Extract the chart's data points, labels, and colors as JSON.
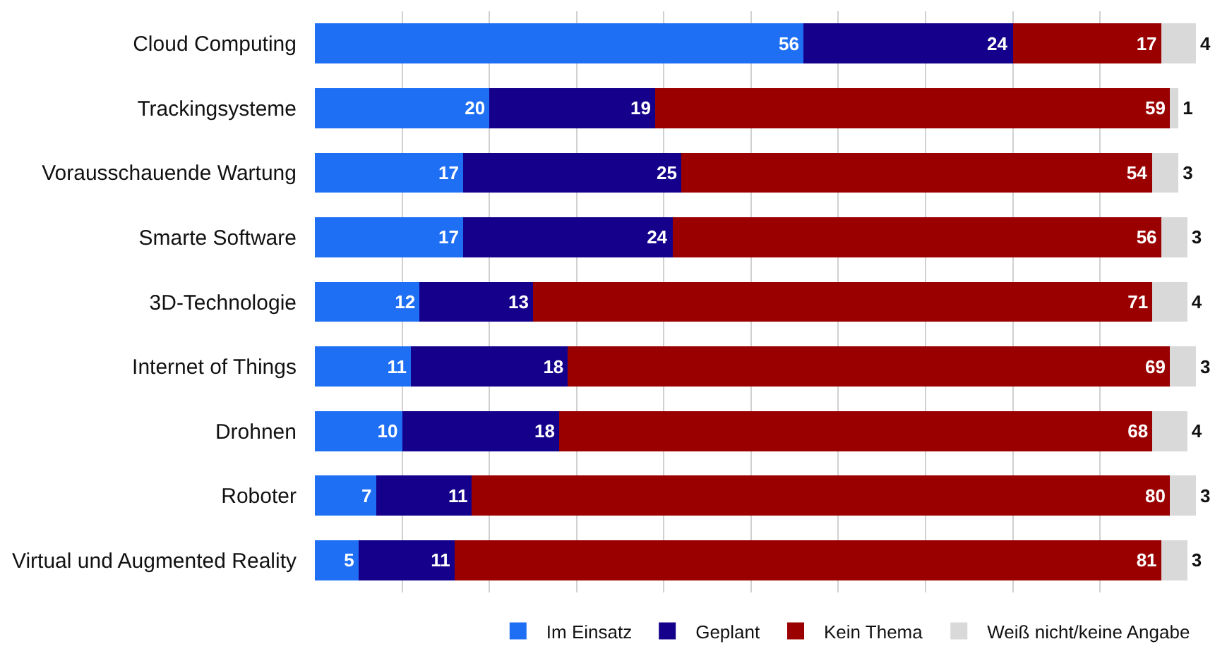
{
  "chart_data": {
    "type": "bar",
    "orientation": "horizontal",
    "stacked": true,
    "data_labels": true,
    "legend": "bottom",
    "grid": "x",
    "tick_labels": "y",
    "categories": [
      "Cloud Computing",
      "Trackingsysteme",
      "Vorausschauende Wartung",
      "Smarte Software",
      "3D-Technologie",
      "Internet of Things",
      "Drohnen",
      "Roboter",
      "Virtual und Augmented Reality"
    ],
    "xlim": [
      0,
      101
    ],
    "xticks": [
      {
        "value": 10,
        "label": null
      },
      {
        "value": 20,
        "label": null
      },
      {
        "value": 30,
        "label": null
      },
      {
        "value": 40,
        "label": null
      },
      {
        "value": 50,
        "label": null
      },
      {
        "value": 60,
        "label": null
      },
      {
        "value": 70,
        "label": null
      },
      {
        "value": 80,
        "label": null
      },
      {
        "value": 90,
        "label": null
      }
    ],
    "series": [
      {
        "name": "Im Einsatz",
        "color": "#1f6ff5",
        "values": [
          56,
          20,
          17,
          17,
          12,
          11,
          10,
          7,
          5
        ]
      },
      {
        "name": "Geplant",
        "color": "#14008a",
        "values": [
          24,
          19,
          25,
          24,
          13,
          18,
          18,
          11,
          11
        ]
      },
      {
        "name": "Kein Thema",
        "color": "#9b0000",
        "values": [
          17,
          59,
          54,
          56,
          71,
          69,
          68,
          80,
          81
        ]
      },
      {
        "name": "Weiß nicht/keine Angabe",
        "color": "#d9d9d9",
        "values": [
          4,
          1,
          3,
          3,
          4,
          3,
          4,
          3,
          3
        ]
      }
    ]
  }
}
